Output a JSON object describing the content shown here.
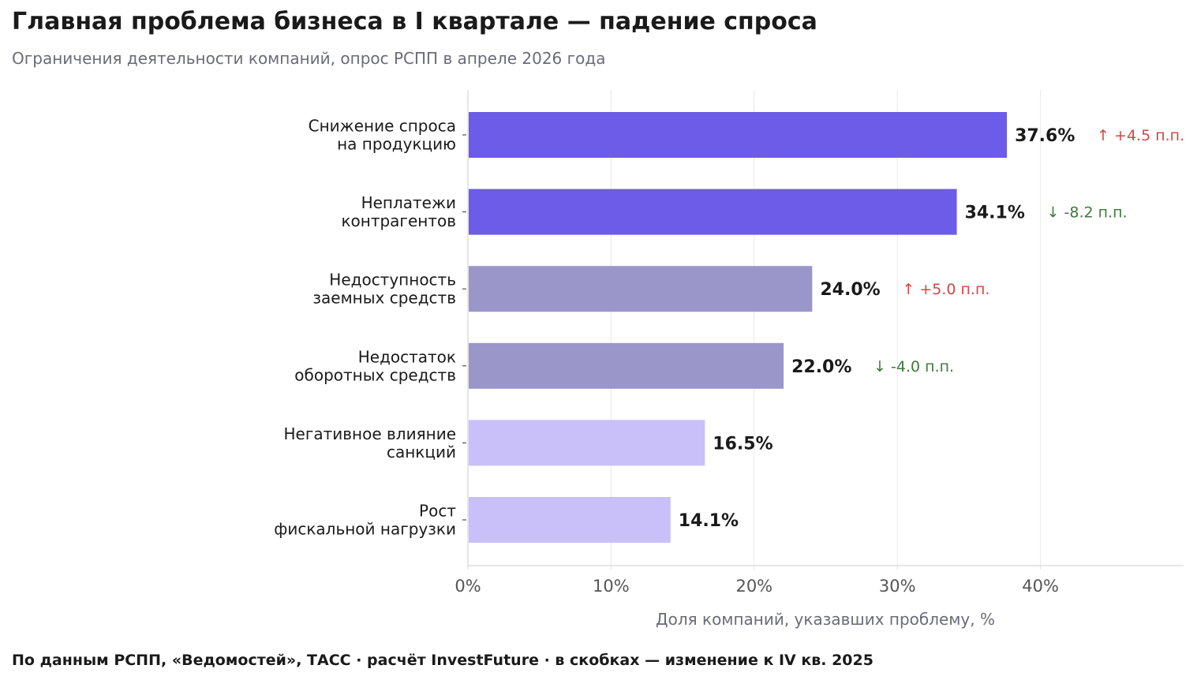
{
  "title": "Главная проблема бизнеса в I квартале — падение спроса",
  "subtitle": "Ограничения деятельности компаний, опрос РСПП в апреле 2026 года",
  "footer": "По данным РСПП, «Ведомостей», ТАСС · расчёт InvestFuture · в скобках — изменение к IV кв. 2025",
  "colors": {
    "dark": "#6c5ce7",
    "mid": "#9b96c9",
    "light": "#c9bff9",
    "up": "#d64545",
    "down": "#3f7a3a",
    "grid": "#ececec",
    "axis": "#dddddd",
    "tick_text": "#555555",
    "label_text": "#1a1a1a",
    "xlabel_text": "#6b6b78"
  },
  "chart_data": {
    "type": "bar",
    "orientation": "horizontal",
    "categories": [
      [
        "Снижение спроса",
        "на продукцию"
      ],
      [
        "Неплатежи",
        "контрагентов"
      ],
      [
        "Недоступность",
        "заемных средств"
      ],
      [
        "Недостаток",
        "оборотных средств"
      ],
      [
        "Негативное влияние",
        "санкций"
      ],
      [
        "Рост",
        "фискальной нагрузки"
      ]
    ],
    "values": [
      37.6,
      34.1,
      24.0,
      22.0,
      16.5,
      14.1
    ],
    "value_labels": [
      "37.6%",
      "34.1%",
      "24.0%",
      "22.0%",
      "16.5%",
      "14.1%"
    ],
    "bar_tones": [
      "dark",
      "dark",
      "mid",
      "mid",
      "light",
      "light"
    ],
    "changes": [
      "↑ +4.5 п.п.",
      "↓ -8.2 п.п.",
      "↑ +5.0 п.п.",
      "↓ -4.0 п.п.",
      "",
      ""
    ],
    "change_direction": [
      "up",
      "down",
      "up",
      "down",
      "",
      ""
    ],
    "xlabel": "Доля компаний, указавших проблему, %",
    "xticks": [
      0,
      10,
      20,
      30,
      40
    ],
    "xtick_labels": [
      "0%",
      "10%",
      "20%",
      "30%",
      "40%"
    ],
    "xlim": [
      0,
      50
    ],
    "grid": "vertical",
    "legend": "none"
  }
}
